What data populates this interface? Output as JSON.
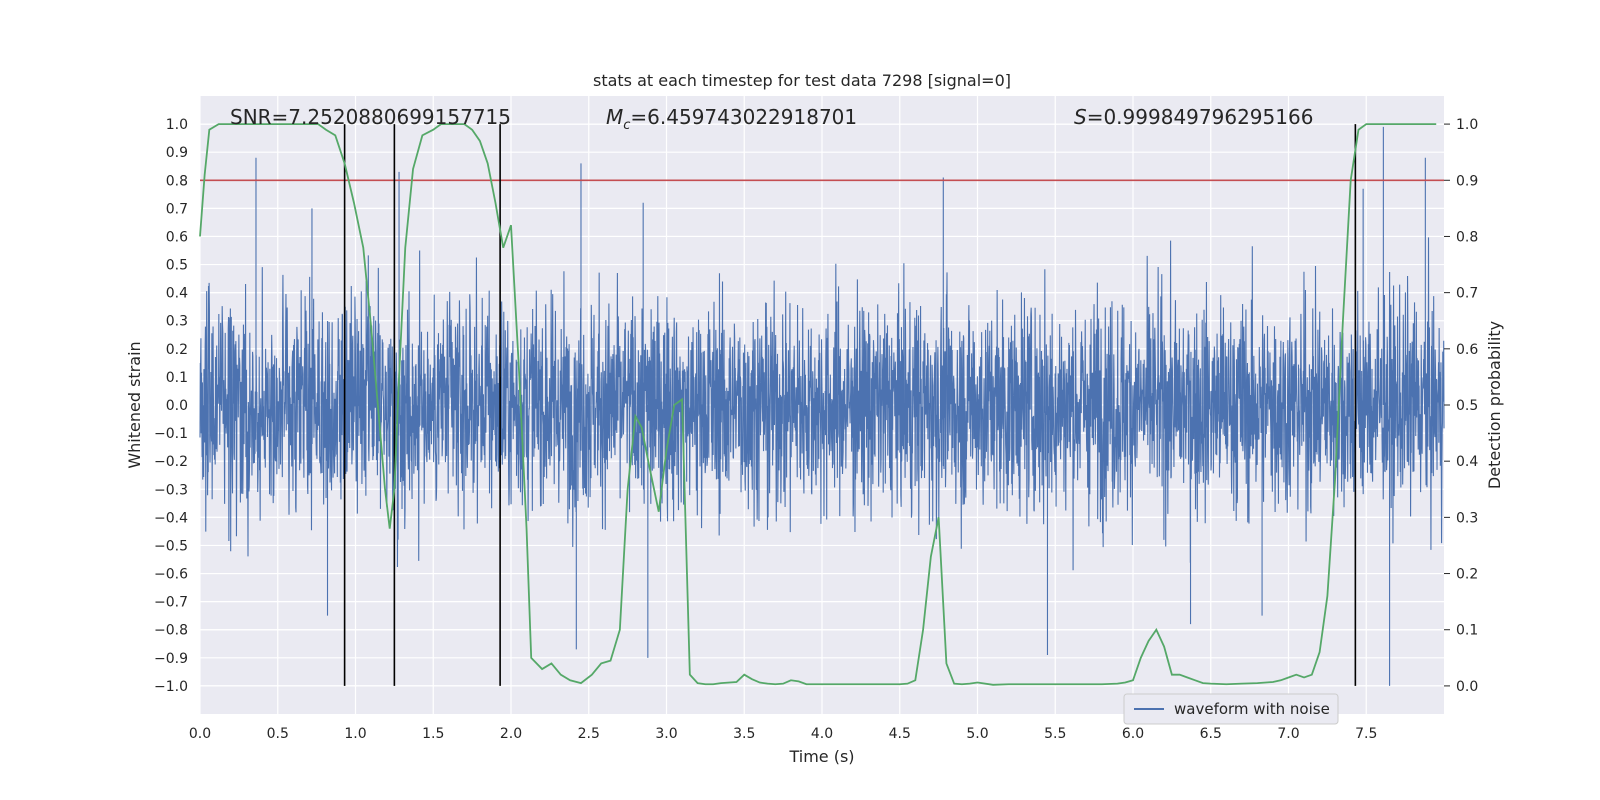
{
  "chart_data": {
    "type": "line",
    "title": "stats at each timestep for test data 7298 [signal=0]",
    "xlabel": "Time (s)",
    "ylabel": "Whitened strain",
    "y2label": "Detection probability",
    "xlim": [
      0.0,
      8.0
    ],
    "ylim": [
      -1.1,
      1.1
    ],
    "y2lim": [
      -0.05,
      1.05
    ],
    "grid": true,
    "x_ticks": [
      "0.0",
      "0.5",
      "1.0",
      "1.5",
      "2.0",
      "2.5",
      "3.0",
      "3.5",
      "4.0",
      "4.5",
      "5.0",
      "5.5",
      "6.0",
      "6.5",
      "7.0",
      "7.5"
    ],
    "y_ticks": [
      "1.0",
      "0.9",
      "0.8",
      "0.7",
      "0.6",
      "0.5",
      "0.4",
      "0.3",
      "0.2",
      "0.1",
      "0.0",
      "−0.1",
      "−0.2",
      "−0.3",
      "−0.4",
      "−0.5",
      "−0.6",
      "−0.7",
      "−0.8",
      "−0.9",
      "−1.0"
    ],
    "y2_ticks": [
      "1.0",
      "0.9",
      "0.8",
      "0.7",
      "0.6",
      "0.5",
      "0.4",
      "0.3",
      "0.2",
      "0.1",
      "0.0"
    ],
    "annotations": {
      "snr": "SNR=7.2520880699157715",
      "mc_symbol": "M",
      "mc_sub": "c",
      "mc_value": "=6.459743022918701",
      "s_symbol": "S",
      "s_value": "=0.999849796295166"
    },
    "legend": {
      "label": "waveform with noise",
      "position": "lower-right"
    },
    "threshold": {
      "value": 0.9,
      "axis": "y2",
      "color": "#c44e52"
    },
    "vlines": [
      0.93,
      1.25,
      1.93,
      7.43
    ],
    "waveform": {
      "name": "waveform with noise",
      "color": "#4c72b0",
      "typical_amplitude": 0.35,
      "peak_amplitude": 1.0,
      "peaks": [
        [
          0.36,
          0.88
        ],
        [
          0.72,
          0.7
        ],
        [
          1.28,
          0.83
        ],
        [
          2.45,
          0.86
        ],
        [
          2.85,
          0.72
        ],
        [
          4.78,
          0.81
        ],
        [
          7.48,
          0.77
        ],
        [
          7.61,
          0.99
        ],
        [
          7.88,
          0.88
        ],
        [
          7.65,
          -1.0
        ],
        [
          0.82,
          -0.75
        ],
        [
          2.42,
          -0.87
        ],
        [
          2.88,
          -0.9
        ],
        [
          5.45,
          -0.89
        ],
        [
          6.37,
          -0.78
        ],
        [
          6.83,
          -0.75
        ]
      ]
    },
    "probability_series": {
      "name": "Detection probability",
      "color": "#55a868",
      "x": [
        0.0,
        0.03,
        0.06,
        0.12,
        0.2,
        0.3,
        0.4,
        0.5,
        0.6,
        0.7,
        0.76,
        0.81,
        0.87,
        0.93,
        0.99,
        1.05,
        1.1,
        1.15,
        1.19,
        1.22,
        1.25,
        1.28,
        1.32,
        1.37,
        1.43,
        1.5,
        1.55,
        1.6,
        1.65,
        1.7,
        1.75,
        1.8,
        1.85,
        1.9,
        1.95,
        2.0,
        2.05,
        2.1,
        2.13,
        2.2,
        2.26,
        2.32,
        2.38,
        2.45,
        2.52,
        2.58,
        2.64,
        2.7,
        2.75,
        2.8,
        2.84,
        2.89,
        2.95,
        3.0,
        3.05,
        3.1,
        3.15,
        3.2,
        3.25,
        3.3,
        3.35,
        3.45,
        3.5,
        3.55,
        3.6,
        3.65,
        3.7,
        3.75,
        3.8,
        3.85,
        3.9,
        4.0,
        4.1,
        4.2,
        4.3,
        4.4,
        4.5,
        4.55,
        4.6,
        4.65,
        4.7,
        4.75,
        4.8,
        4.85,
        4.9,
        4.95,
        5.0,
        5.1,
        5.2,
        5.4,
        5.6,
        5.8,
        5.9,
        5.95,
        6.0,
        6.05,
        6.1,
        6.15,
        6.2,
        6.25,
        6.3,
        6.35,
        6.4,
        6.45,
        6.5,
        6.6,
        6.7,
        6.8,
        6.9,
        6.95,
        7.0,
        7.05,
        7.1,
        7.15,
        7.2,
        7.25,
        7.3,
        7.35,
        7.4,
        7.45,
        7.5,
        7.6,
        7.7,
        7.8,
        7.9,
        7.95
      ],
      "values": [
        0.8,
        0.91,
        0.99,
        1.0,
        1.0,
        1.0,
        1.0,
        1.0,
        1.0,
        1.0,
        1.0,
        0.99,
        0.98,
        0.93,
        0.86,
        0.78,
        0.64,
        0.48,
        0.35,
        0.28,
        0.35,
        0.55,
        0.78,
        0.92,
        0.98,
        0.99,
        1.0,
        1.0,
        1.0,
        1.0,
        0.99,
        0.97,
        0.93,
        0.86,
        0.78,
        0.82,
        0.57,
        0.28,
        0.05,
        0.03,
        0.04,
        0.02,
        0.01,
        0.005,
        0.02,
        0.04,
        0.045,
        0.1,
        0.35,
        0.48,
        0.46,
        0.39,
        0.31,
        0.42,
        0.5,
        0.51,
        0.02,
        0.005,
        0.003,
        0.003,
        0.005,
        0.007,
        0.02,
        0.012,
        0.006,
        0.004,
        0.003,
        0.004,
        0.01,
        0.008,
        0.003,
        0.003,
        0.003,
        0.003,
        0.003,
        0.003,
        0.003,
        0.004,
        0.01,
        0.1,
        0.23,
        0.3,
        0.04,
        0.004,
        0.003,
        0.004,
        0.006,
        0.002,
        0.003,
        0.003,
        0.003,
        0.003,
        0.004,
        0.006,
        0.01,
        0.05,
        0.08,
        0.1,
        0.07,
        0.02,
        0.02,
        0.015,
        0.01,
        0.005,
        0.004,
        0.003,
        0.004,
        0.005,
        0.007,
        0.01,
        0.015,
        0.02,
        0.015,
        0.02,
        0.06,
        0.16,
        0.37,
        0.65,
        0.9,
        0.99,
        1.0,
        1.0,
        1.0,
        1.0,
        1.0,
        1.0
      ]
    }
  }
}
